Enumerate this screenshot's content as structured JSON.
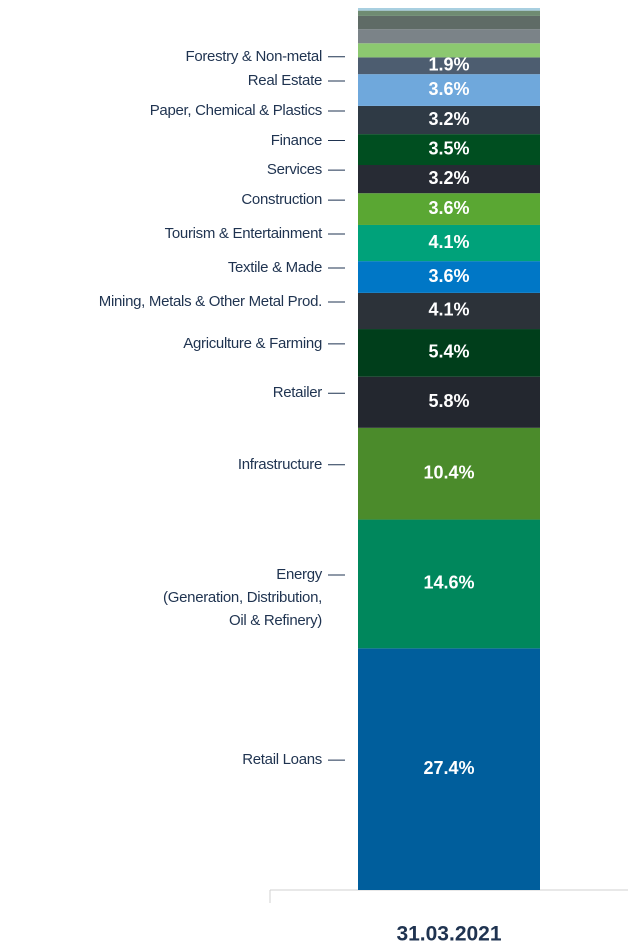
{
  "chart_data": {
    "type": "bar",
    "stacked": true,
    "categories": [
      "31.03.2021"
    ],
    "series": [
      {
        "name": "Retail Loans",
        "color": "#005e9c",
        "values": [
          27.4
        ],
        "value_labels": [
          "27.4%"
        ]
      },
      {
        "name": "Energy\n(Generation, Distribution,\nOil & Refinery)",
        "color": "#00875c",
        "values": [
          14.6
        ],
        "value_labels": [
          "14.6%"
        ]
      },
      {
        "name": "Infrastructure",
        "color": "#4b8b2b",
        "values": [
          10.4
        ],
        "value_labels": [
          "10.4%"
        ]
      },
      {
        "name": "Retailer",
        "color": "#23272f",
        "values": [
          5.8
        ],
        "value_labels": [
          "5.8%"
        ]
      },
      {
        "name": "Agriculture & Farming",
        "color": "#003e1b",
        "values": [
          5.4
        ],
        "value_labels": [
          "5.4%"
        ]
      },
      {
        "name": "Mining, Metals & Other Metal Prod.",
        "color": "#2c3239",
        "values": [
          4.1
        ],
        "value_labels": [
          "4.1%"
        ]
      },
      {
        "name": "Textile & Made",
        "color": "#0077c6",
        "values": [
          3.6
        ],
        "value_labels": [
          "3.6%"
        ]
      },
      {
        "name": "Tourism & Entertainment",
        "color": "#00a27a",
        "values": [
          4.1
        ],
        "value_labels": [
          "4.1%"
        ]
      },
      {
        "name": "Construction",
        "color": "#5aa733",
        "values": [
          3.6
        ],
        "value_labels": [
          "3.6%"
        ]
      },
      {
        "name": "Services",
        "color": "#272b34",
        "values": [
          3.2
        ],
        "value_labels": [
          "3.2%"
        ]
      },
      {
        "name": "Finance",
        "color": "#004e20",
        "values": [
          3.5
        ],
        "value_labels": [
          "3.5%"
        ]
      },
      {
        "name": "Paper, Chemical & Plastics",
        "color": "#2f3a45",
        "values": [
          3.2
        ],
        "value_labels": [
          "3.2%"
        ]
      },
      {
        "name": "Real Estate",
        "color": "#6fa8dc",
        "values": [
          3.6
        ],
        "value_labels": [
          "3.6%"
        ]
      },
      {
        "name": "Forestry & Non-metal",
        "color": "#4d5d70",
        "values": [
          1.9
        ],
        "value_labels": [
          "1.9%"
        ]
      },
      {
        "name": null,
        "color": "#8cc870",
        "values": [
          1.6
        ],
        "value_labels": [
          null
        ]
      },
      {
        "name": null,
        "color": "#7b8388",
        "values": [
          1.6
        ],
        "value_labels": [
          null
        ]
      },
      {
        "name": null,
        "color": "#5f6b66",
        "values": [
          1.5
        ],
        "value_labels": [
          null
        ]
      },
      {
        "name": null,
        "color": "#6f8b72",
        "values": [
          0.6
        ],
        "value_labels": [
          null
        ]
      },
      {
        "name": null,
        "color": "#a8cfe0",
        "values": [
          0.3
        ],
        "value_labels": [
          null
        ]
      }
    ]
  }
}
